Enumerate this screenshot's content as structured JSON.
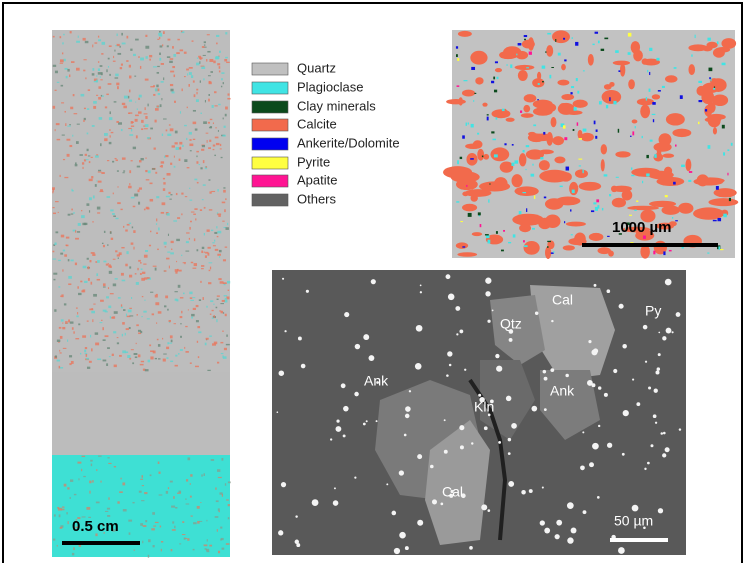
{
  "core_image": {
    "scale_bar": "0.5 cm"
  },
  "legend": {
    "items": [
      "Quartz",
      "Plagioclase",
      "Clay minerals",
      "Calcite",
      "Ankerite/Dolomite",
      "Pyrite",
      "Apatite",
      "Others"
    ]
  },
  "mineral_map": {
    "scale_bar": "1000 µm"
  },
  "sem_image": {
    "labels": [
      "Cal",
      "Qtz",
      "Py",
      "Ank",
      "Kln",
      "Ank",
      "Cal"
    ],
    "scale_bar": "50 µm"
  }
}
